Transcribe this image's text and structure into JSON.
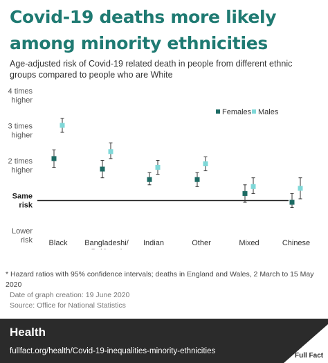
{
  "title": "Covid-19 deaths more likely among minority ethnicities",
  "subtitle": "Age-adjusted risk of Covid-19 related death in people from different ethnic groups compared to people who are White",
  "footnotes": {
    "main": "* Hazard ratios with 95% confidence intervals; deaths in England and Wales, 2 March to 15 May 2020",
    "date": "Date of graph creation: 19 June 2020",
    "source": "Source: Office for National Statistics"
  },
  "footer": {
    "section": "Health",
    "url": "fullfact.org/health/Covid-19-inequalities-minority-ethnicities",
    "brand": "Full Fact"
  },
  "colors": {
    "title": "#1f7a72",
    "females": "#1d6b64",
    "males": "#7fd8d8",
    "footer_bg": "#2b2b2b"
  },
  "chart_data": {
    "type": "scatter",
    "categories": [
      "Black",
      "Bangladeshi/ Pakistani",
      "Indian",
      "Other",
      "Mixed",
      "Chinese"
    ],
    "y_ticks": [
      {
        "value": 4,
        "label": [
          "4 times",
          "higher"
        ]
      },
      {
        "value": 3,
        "label": [
          "3 times",
          "higher"
        ]
      },
      {
        "value": 2,
        "label": [
          "2 times",
          "higher"
        ]
      },
      {
        "value": 1,
        "label": [
          "Same",
          "risk"
        ]
      },
      {
        "value": 0,
        "label": [
          "Lower",
          "risk"
        ]
      }
    ],
    "ylim": [
      0,
      4
    ],
    "reference_value": 1,
    "legend_placement": "top-right",
    "series": [
      {
        "name": "Females",
        "color": "#1d6b64",
        "values": [
          2.2,
          1.9,
          1.6,
          1.6,
          1.2,
          0.95
        ],
        "ci_low": [
          1.95,
          1.65,
          1.45,
          1.4,
          0.95,
          0.8
        ],
        "ci_high": [
          2.45,
          2.15,
          1.8,
          1.8,
          1.45,
          1.2
        ]
      },
      {
        "name": "Males",
        "color": "#7fd8d8",
        "values": [
          3.15,
          2.4,
          1.95,
          2.05,
          1.4,
          1.35
        ],
        "ci_low": [
          2.95,
          2.2,
          1.75,
          1.85,
          1.2,
          1.05
        ],
        "ci_high": [
          3.35,
          2.65,
          2.15,
          2.25,
          1.65,
          1.65
        ]
      }
    ]
  }
}
